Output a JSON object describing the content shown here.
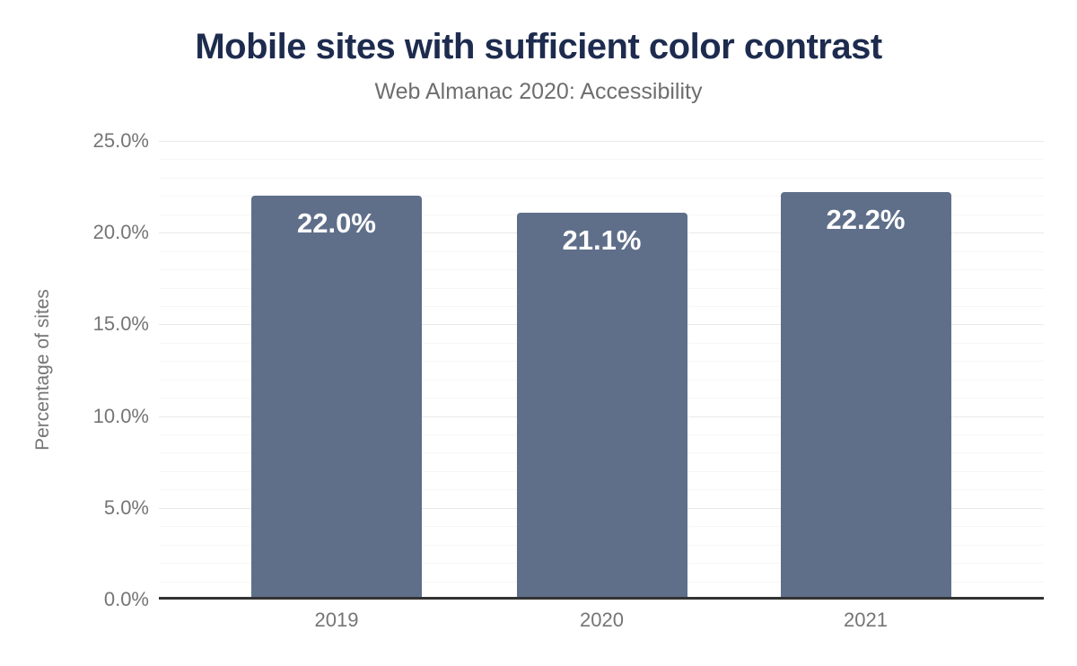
{
  "chart_data": {
    "type": "bar",
    "title": "Mobile sites with sufficient color contrast",
    "subtitle": "Web Almanac 2020: Accessibility",
    "xlabel": "",
    "ylabel": "Percentage of sites",
    "categories": [
      "2019",
      "2020",
      "2021"
    ],
    "values": [
      22.0,
      21.1,
      22.2
    ],
    "value_labels": [
      "22.0%",
      "21.1%",
      "22.2%"
    ],
    "ylim": [
      0,
      25
    ],
    "y_ticks": [
      {
        "value": 0,
        "label": "0.0%"
      },
      {
        "value": 5,
        "label": "5.0%"
      },
      {
        "value": 10,
        "label": "10.0%"
      },
      {
        "value": 15,
        "label": "15.0%"
      },
      {
        "value": 20,
        "label": "20.0%"
      },
      {
        "value": 25,
        "label": "25.0%"
      }
    ],
    "minor_tick_step": 1,
    "grid": "horizontal, minor every 1%, major every 5%",
    "legend": "none",
    "colors": {
      "background": "#ffffff",
      "bar": "#5f6f8a",
      "bar_label": "#ffffff",
      "title": "#1d2b4e",
      "subtitle": "#6e6e6e",
      "tick_labels": "#757575",
      "axis_line": "#333333",
      "grid_major": "#e9e9e9",
      "grid_minor": "#f6f6f6"
    }
  }
}
